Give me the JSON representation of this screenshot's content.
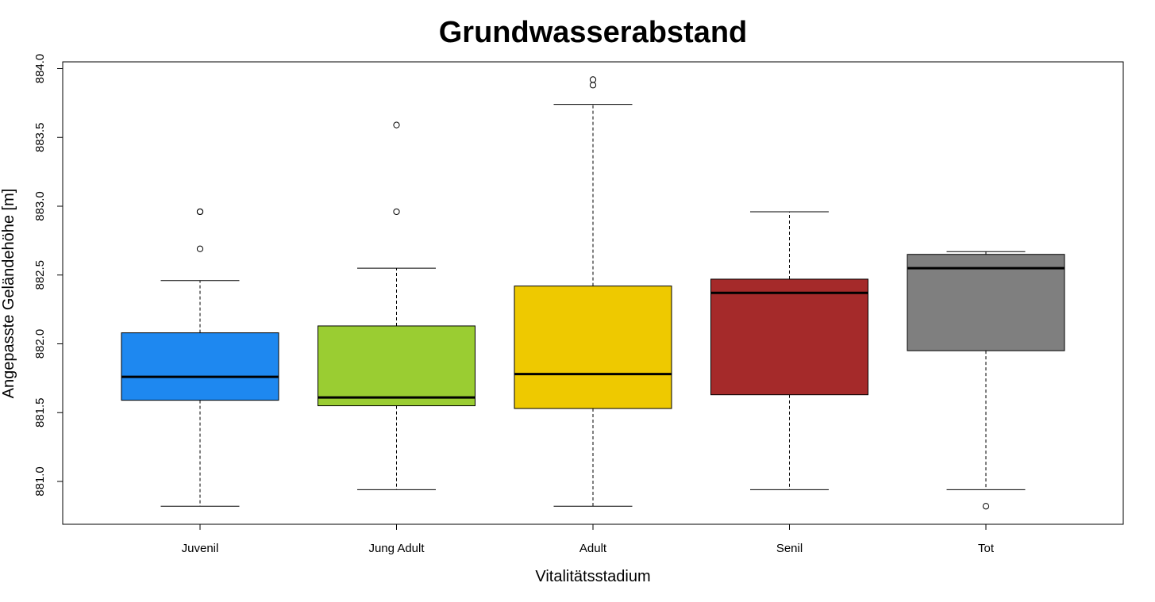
{
  "chart_data": {
    "type": "boxplot",
    "title": "Grundwasserabstand",
    "xlabel": "Vitalitätsstadium",
    "ylabel": "Angepasste Geländehöhe [m]",
    "ylim": [
      880.85,
      884.05
    ],
    "yticks": [
      "881.0",
      "881.5",
      "882.0",
      "882.5",
      "883.0",
      "883.5",
      "884.0"
    ],
    "grid": false,
    "groups": [
      {
        "category": "Juvenil",
        "color": "#1E88F0",
        "whisker_low": 880.82,
        "q1": 881.59,
        "median": 881.76,
        "q3": 882.08,
        "whisker_high": 882.46,
        "outliers": [
          882.69,
          882.96,
          882.96
        ]
      },
      {
        "category": "Jung Adult",
        "color": "#9ACD32",
        "whisker_low": 880.94,
        "q1": 881.55,
        "median": 881.61,
        "q3": 882.13,
        "whisker_high": 882.55,
        "outliers": [
          882.96,
          883.59
        ]
      },
      {
        "category": "Adult",
        "color": "#EEC900",
        "whisker_low": 880.82,
        "q1": 881.53,
        "median": 881.78,
        "q3": 882.42,
        "whisker_high": 883.74,
        "outliers": [
          883.88,
          883.92
        ]
      },
      {
        "category": "Senil",
        "color": "#A52A2A",
        "whisker_low": 880.94,
        "q1": 881.63,
        "median": 882.37,
        "q3": 882.47,
        "whisker_high": 882.96,
        "outliers": []
      },
      {
        "category": "Tot",
        "color": "#7F7F7F",
        "whisker_low": 880.94,
        "q1": 881.95,
        "median": 882.55,
        "q3": 882.65,
        "whisker_high": 882.67,
        "outliers": [
          880.82
        ]
      }
    ]
  }
}
